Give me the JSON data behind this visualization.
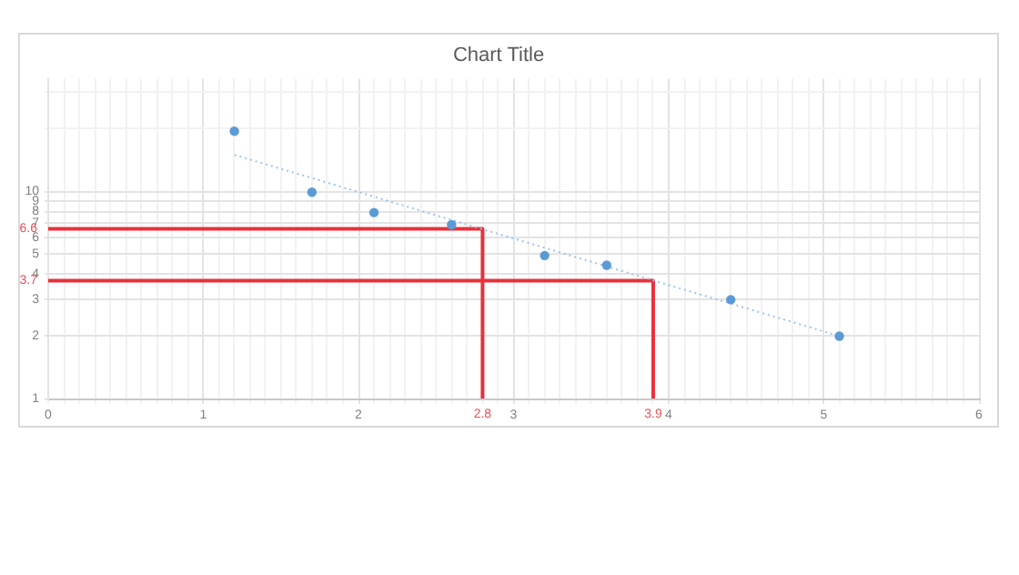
{
  "chart_data": {
    "type": "scatter",
    "title": "Chart Title",
    "series": [
      {
        "type": "scatter",
        "color": "#5b9bd5",
        "x": [
          1.2,
          1.7,
          2.1,
          2.6,
          3.2,
          3.6,
          4.4,
          5.1
        ],
        "values": [
          19.5,
          9.9,
          7.9,
          6.9,
          4.9,
          4.4,
          3.0,
          2.0
        ],
        "marker": "circle"
      },
      {
        "type": "line",
        "color": "#9dc3e6",
        "x": [
          1.2,
          5.1
        ],
        "values": [
          15,
          2.0
        ],
        "line_style": "dotted",
        "marker": "none"
      },
      {
        "type": "line",
        "color": "#e8313b",
        "x": [
          0,
          2.8,
          2.8
        ],
        "values": [
          6.6,
          6.6,
          1
        ],
        "line_style": "solid",
        "marker": "none"
      },
      {
        "type": "line",
        "color": "#e8313b",
        "x": [
          0,
          3.9,
          3.9
        ],
        "values": [
          3.7,
          3.7,
          1
        ],
        "line_style": "solid",
        "marker": "none"
      }
    ],
    "annotations": [
      {
        "text": "6.6",
        "x": 0,
        "y": 6.6
      },
      {
        "text": "3.7",
        "x": 0,
        "y": 3.7
      },
      {
        "text": "2.8",
        "x": 2.8,
        "y": 1
      },
      {
        "text": "3.9",
        "x": 3.9,
        "y": 1
      }
    ],
    "xlim": [
      0,
      6
    ],
    "ylim": [
      1,
      35
    ],
    "log": "y",
    "grid": true,
    "xticks": [
      0,
      {
        "value": 0.1,
        "label": null
      },
      {
        "value": 0.2,
        "label": null
      },
      {
        "value": 0.3,
        "label": null
      },
      {
        "value": 0.4,
        "label": null
      },
      {
        "value": 0.5,
        "label": null
      },
      {
        "value": 0.6,
        "label": null
      },
      {
        "value": 0.7,
        "label": null
      },
      {
        "value": 0.8,
        "label": null
      },
      {
        "value": 0.9,
        "label": null
      },
      1,
      {
        "value": 1.1,
        "label": null
      },
      {
        "value": 1.2,
        "label": null
      },
      {
        "value": 1.3,
        "label": null
      },
      {
        "value": 1.4,
        "label": null
      },
      {
        "value": 1.5,
        "label": null
      },
      {
        "value": 1.6,
        "label": null
      },
      {
        "value": 1.7,
        "label": null
      },
      {
        "value": 1.8,
        "label": null
      },
      {
        "value": 1.9,
        "label": null
      },
      2,
      {
        "value": 2.1,
        "label": null
      },
      {
        "value": 2.2,
        "label": null
      },
      {
        "value": 2.3,
        "label": null
      },
      {
        "value": 2.4,
        "label": null
      },
      {
        "value": 2.5,
        "label": null
      },
      {
        "value": 2.6,
        "label": null
      },
      {
        "value": 2.7,
        "label": null
      },
      {
        "value": 2.8,
        "label": null
      },
      {
        "value": 2.9,
        "label": null
      },
      3,
      {
        "value": 3.1,
        "label": null
      },
      {
        "value": 3.2,
        "label": null
      },
      {
        "value": 3.3,
        "label": null
      },
      {
        "value": 3.4,
        "label": null
      },
      {
        "value": 3.5,
        "label": null
      },
      {
        "value": 3.6,
        "label": null
      },
      {
        "value": 3.7,
        "label": null
      },
      {
        "value": 3.8,
        "label": null
      },
      {
        "value": 3.9,
        "label": null
      },
      4,
      {
        "value": 4.1,
        "label": null
      },
      {
        "value": 4.2,
        "label": null
      },
      {
        "value": 4.3,
        "label": null
      },
      {
        "value": 4.4,
        "label": null
      },
      {
        "value": 4.5,
        "label": null
      },
      {
        "value": 4.6,
        "label": null
      },
      {
        "value": 4.7,
        "label": null
      },
      {
        "value": 4.8,
        "label": null
      },
      {
        "value": 4.9,
        "label": null
      },
      5,
      {
        "value": 5.1,
        "label": null
      },
      {
        "value": 5.2,
        "label": null
      },
      {
        "value": 5.3,
        "label": null
      },
      {
        "value": 5.4,
        "label": null
      },
      {
        "value": 5.5,
        "label": null
      },
      {
        "value": 5.6,
        "label": null
      },
      {
        "value": 5.7,
        "label": null
      },
      {
        "value": 5.8,
        "label": null
      },
      {
        "value": 5.9,
        "label": null
      },
      6
    ],
    "yticks": [
      1,
      2,
      3,
      4,
      5,
      6,
      7,
      8,
      9,
      10,
      {
        "value": 20,
        "label": null
      },
      {
        "value": 30,
        "label": null
      }
    ]
  }
}
